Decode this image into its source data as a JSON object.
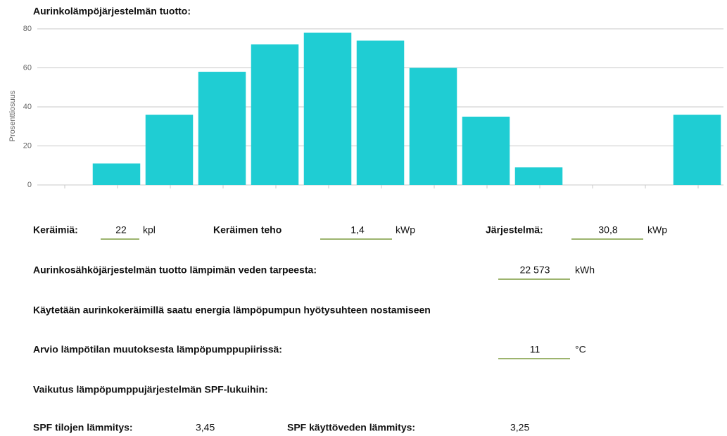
{
  "chart_data": {
    "type": "bar",
    "title": "Aurinkolämpöjärjestelmän tuotto:",
    "y_label": "Prosenttiosuus",
    "categories": [
      null,
      null,
      null,
      null,
      null,
      null,
      null,
      null,
      null,
      null,
      null,
      null,
      null
    ],
    "values": [
      0,
      11,
      36,
      58,
      72,
      78,
      74,
      60,
      35,
      9,
      0,
      0,
      36
    ],
    "color": "#1fcdd3",
    "ylim": [
      0,
      80
    ],
    "yticks": [
      0,
      20,
      40,
      60,
      80
    ],
    "grid": true
  },
  "form": {
    "collectors": {
      "label": "Keräimiä:",
      "value": "22",
      "unit": "kpl"
    },
    "collector_power": {
      "label": "Keräimen teho",
      "value": "1,4",
      "unit": "kWp"
    },
    "system": {
      "label": "Järjestelmä:",
      "value": "30,8",
      "unit": "kWp"
    },
    "yield": {
      "label": "Aurinkosähköjärjestelmän tuotto lämpimän veden tarpeesta:",
      "value": "22 573",
      "unit": "kWh"
    },
    "note": "Käytetään aurinkokeräimillä saatu energia lämpöpumpun hyötysuhteen nostamiseen",
    "temp": {
      "label": "Arvio lämpötilan muutoksesta lämpöpumppupiirissä:",
      "value": "11",
      "unit": "°C"
    },
    "impact": "Vaikutus lämpöpumppujärjestelmän SPF-lukuihin:",
    "spf_heating": {
      "label": "SPF tilojen lämmitys:",
      "value": "3,45"
    },
    "spf_water": {
      "label": "SPF käyttöveden lämmitys:",
      "value": "3,25"
    }
  }
}
